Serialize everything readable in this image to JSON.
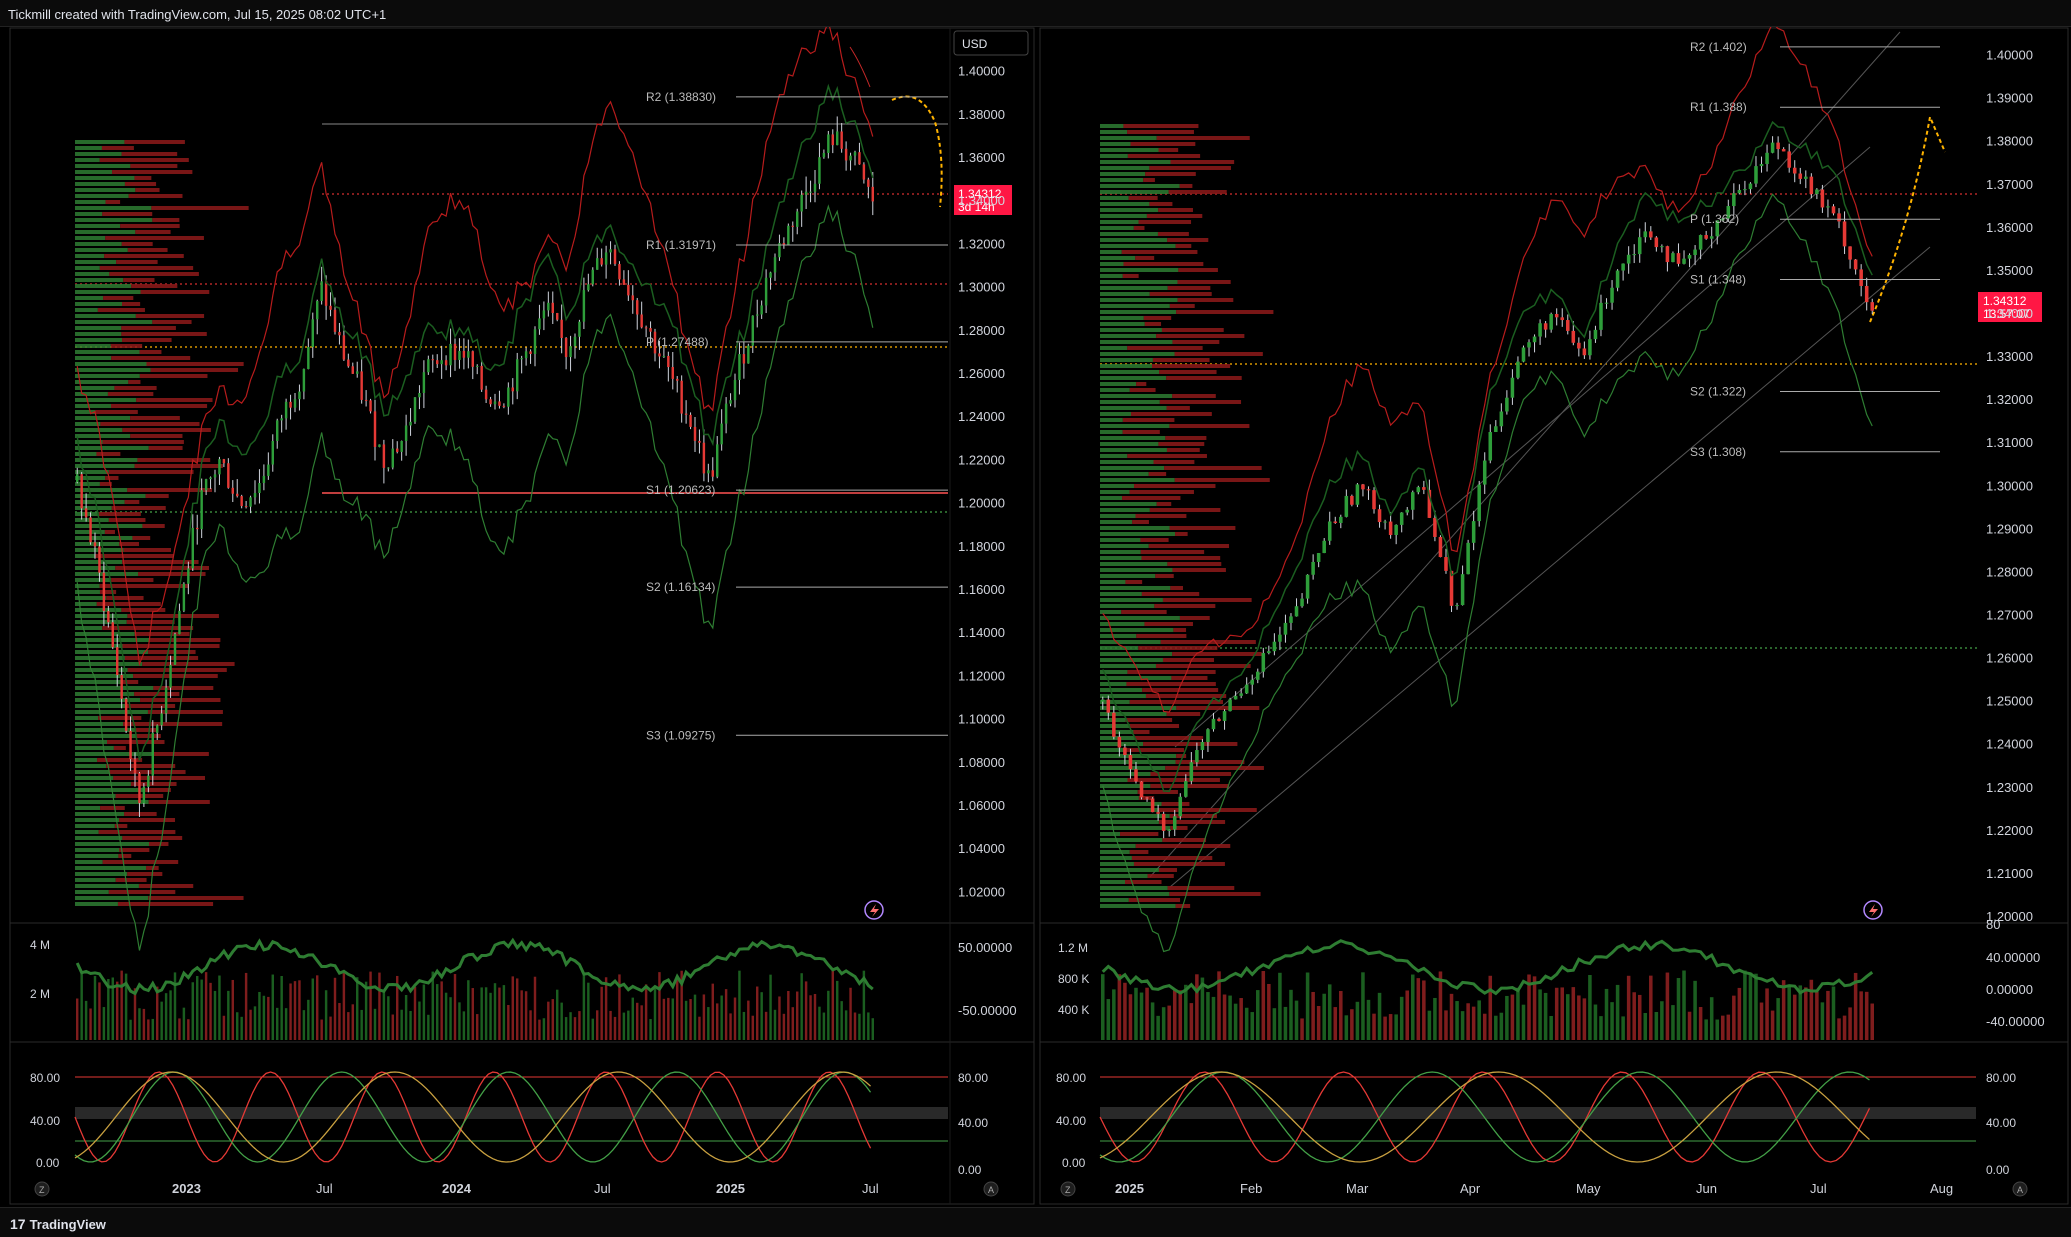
{
  "header": {
    "attribution": "Tickmill created with TradingView.com, Jul 15, 2025 08:02 UTC+1"
  },
  "footer": {
    "brand": "TradingView",
    "brand_glyph": "17"
  },
  "colors": {
    "up": "#2e7d32",
    "down": "#c62828",
    "bg": "#000000",
    "panel_border": "#2a2a2a",
    "price_label": "#ff1744",
    "dotted_yellow": "#ffb300"
  },
  "left_chart": {
    "currency_badge": "USD",
    "last_price": "1.34312",
    "countdown": "3d 14h",
    "price_axis": [
      "1.40000",
      "1.38000",
      "1.36000",
      "1.34000",
      "1.32000",
      "1.30000",
      "1.28000",
      "1.26000",
      "1.24000",
      "1.22000",
      "1.20000",
      "1.18000",
      "1.16000",
      "1.14000",
      "1.12000",
      "1.10000",
      "1.08000",
      "1.06000",
      "1.04000",
      "1.02000"
    ],
    "pivot_levels": [
      {
        "label": "R2 (1.38830)",
        "value": 1.3883
      },
      {
        "label": "R1 (1.31971)",
        "value": 1.31971
      },
      {
        "label": "P (1.27488)",
        "value": 1.27488
      },
      {
        "label": "S1 (1.20623)",
        "value": 1.20623
      },
      {
        "label": "S2 (1.16134)",
        "value": 1.16134
      },
      {
        "label": "S3 (1.09275)",
        "value": 1.09275
      }
    ],
    "volume_axis": [
      "4 M",
      "2 M"
    ],
    "momentum_axis": [
      "50.00000",
      "-50.00000"
    ],
    "stoch_axis_left": [
      "80.00",
      "40.00",
      "0.00"
    ],
    "stoch_axis_right": [
      "80.00",
      "40.00",
      "0.00"
    ],
    "time_axis": [
      "2023",
      "Jul",
      "2024",
      "Jul",
      "2025",
      "Jul"
    ],
    "corner_left": "Z",
    "corner_right": "A"
  },
  "right_chart": {
    "last_price": "1.34312",
    "countdown": "13:57:07",
    "price_axis": [
      "1.40000",
      "1.39000",
      "1.38000",
      "1.37000",
      "1.36000",
      "1.35000",
      "1.34000",
      "1.33000",
      "1.32000",
      "1.31000",
      "1.30000",
      "1.29000",
      "1.28000",
      "1.27000",
      "1.26000",
      "1.25000",
      "1.24000",
      "1.23000",
      "1.22000",
      "1.21000",
      "1.20000"
    ],
    "pivot_levels": [
      {
        "label": "R2 (1.402)",
        "value": 1.402
      },
      {
        "label": "R1 (1.388)",
        "value": 1.388
      },
      {
        "label": "P (1.362)",
        "value": 1.362
      },
      {
        "label": "S1 (1.348)",
        "value": 1.348
      },
      {
        "label": "S2 (1.322)",
        "value": 1.322
      },
      {
        "label": "S3 (1.308)",
        "value": 1.308
      }
    ],
    "volume_axis": [
      "1.2 M",
      "800 K",
      "400 K"
    ],
    "momentum_axis": [
      "80",
      "40.00000",
      "0.00000",
      "-40.00000"
    ],
    "stoch_axis_left": [
      "80.00",
      "40.00",
      "0.00"
    ],
    "stoch_axis_right": [
      "80.00",
      "40.00",
      "0.00"
    ],
    "time_axis": [
      "2025",
      "Feb",
      "Mar",
      "Apr",
      "May",
      "Jun",
      "Jul",
      "Aug"
    ],
    "corner_left": "Z",
    "corner_right": "A"
  },
  "chart_data": [
    {
      "type": "candlestick",
      "title": "",
      "ylim": [
        1.01,
        1.41
      ],
      "x_ticks": [
        "2023",
        "Jul",
        "2024",
        "Jul",
        "2025",
        "Jul"
      ],
      "close_path": [
        1.21,
        1.17,
        1.12,
        1.06,
        1.1,
        1.15,
        1.2,
        1.22,
        1.2,
        1.21,
        1.24,
        1.26,
        1.3,
        1.27,
        1.25,
        1.22,
        1.23,
        1.26,
        1.27,
        1.27,
        1.25,
        1.25,
        1.27,
        1.29,
        1.27,
        1.3,
        1.32,
        1.3,
        1.28,
        1.26,
        1.24,
        1.21,
        1.25,
        1.28,
        1.31,
        1.33,
        1.35,
        1.37,
        1.36,
        1.34
      ]
    },
    {
      "type": "candlestick",
      "title": "",
      "ylim": [
        1.2,
        1.405
      ],
      "x_ticks": [
        "2025",
        "Feb",
        "Mar",
        "Apr",
        "May",
        "Jun",
        "Jul",
        "Aug"
      ],
      "close_path": [
        1.25,
        1.23,
        1.22,
        1.24,
        1.25,
        1.26,
        1.27,
        1.29,
        1.3,
        1.29,
        1.3,
        1.27,
        1.31,
        1.33,
        1.34,
        1.33,
        1.35,
        1.36,
        1.35,
        1.36,
        1.37,
        1.38,
        1.37,
        1.36,
        1.34
      ]
    }
  ]
}
